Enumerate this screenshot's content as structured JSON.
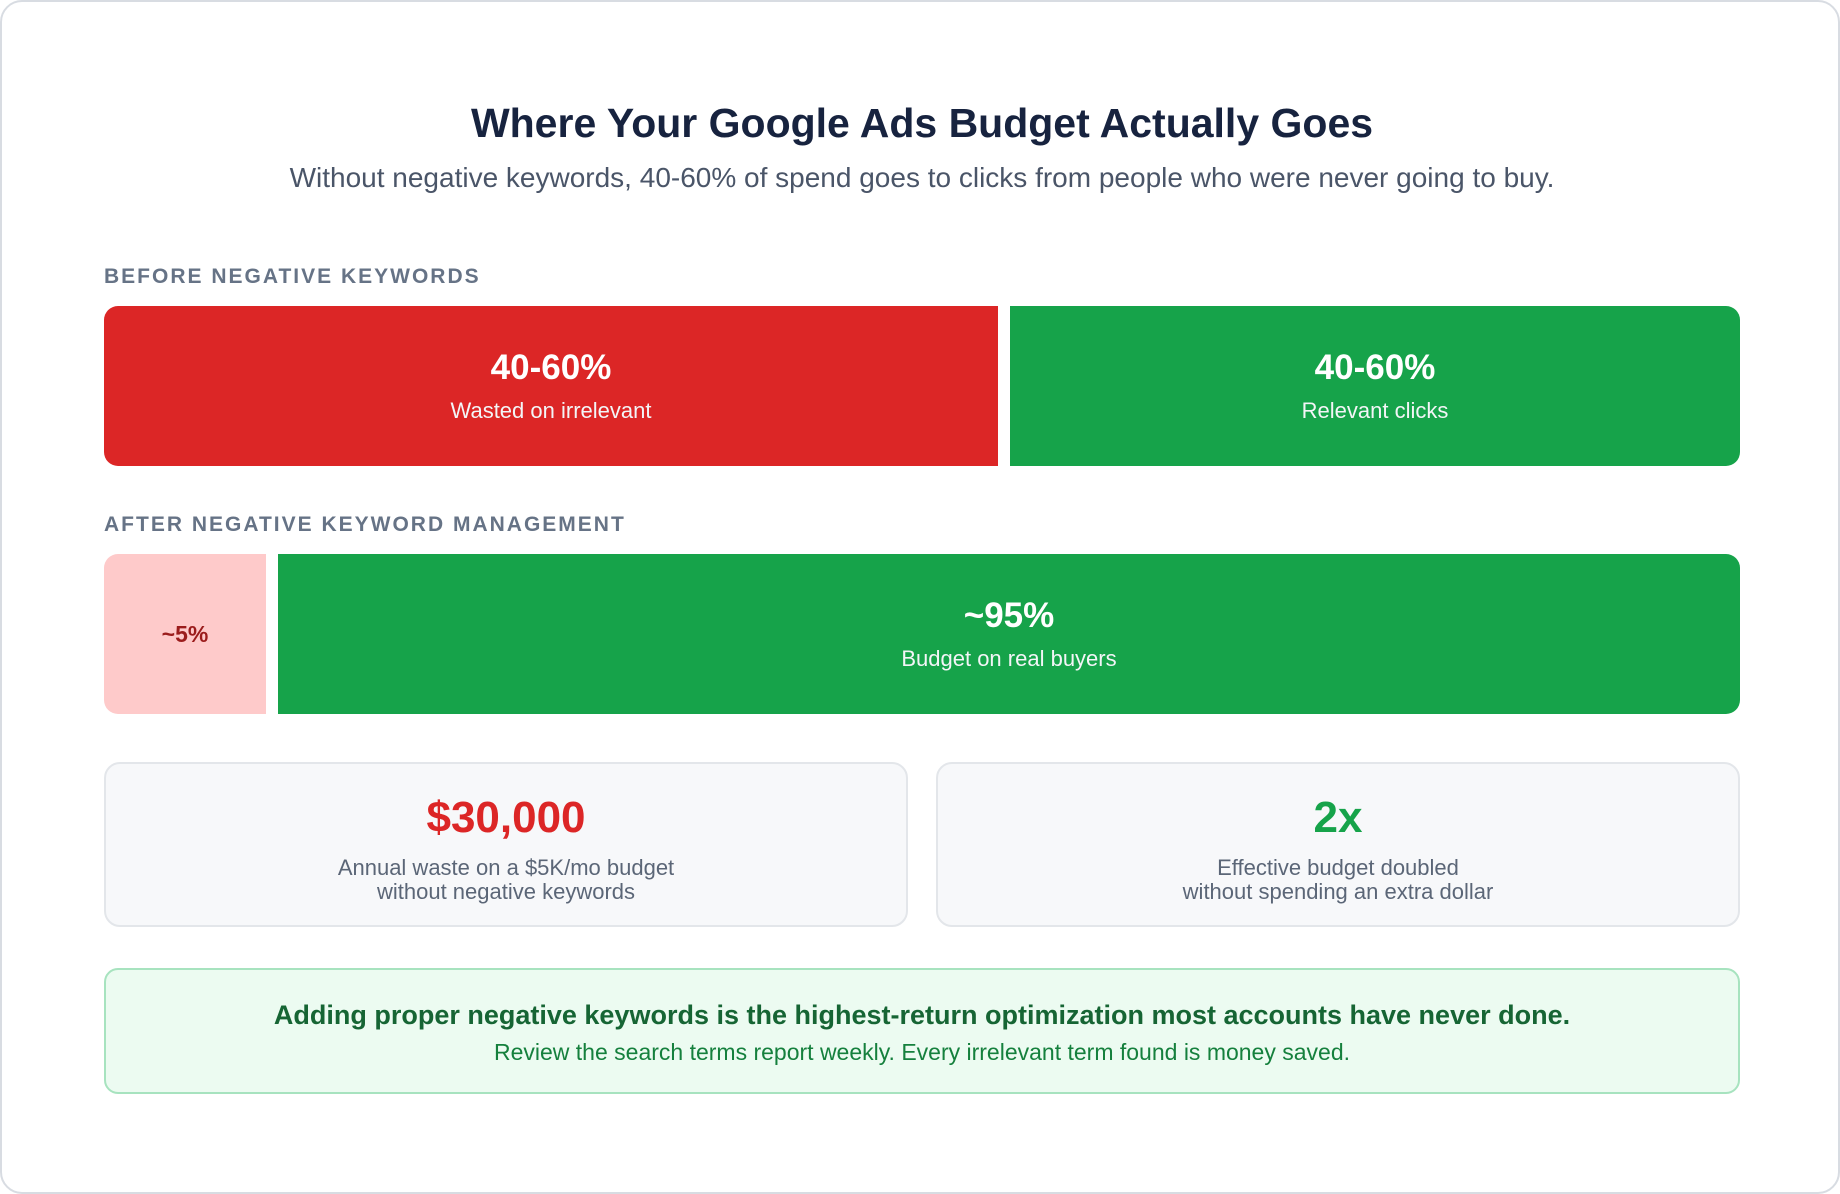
{
  "header": {
    "title": "Where Your Google Ads Budget Actually Goes",
    "subtitle": "Without negative keywords, 40-60% of spend goes to clicks from people who were never going to buy."
  },
  "before": {
    "label": "BEFORE NEGATIVE KEYWORDS",
    "segments": [
      {
        "value": "40-60%",
        "caption": "Wasted on irrelevant",
        "color": "#dc2626"
      },
      {
        "value": "40-60%",
        "caption": "Relevant clicks",
        "color": "#16a34a"
      }
    ]
  },
  "after": {
    "label": "AFTER NEGATIVE KEYWORD MANAGEMENT",
    "segments": [
      {
        "value": "~5%",
        "color": "#fecaca"
      },
      {
        "value": "~95%",
        "caption": "Budget on real buyers",
        "color": "#16a34a"
      }
    ]
  },
  "stats": [
    {
      "value": "$30,000",
      "line1": "Annual waste on a $5K/mo budget",
      "line2": "without negative keywords",
      "color": "#dc2626"
    },
    {
      "value": "2x",
      "line1": "Effective budget doubled",
      "line2": "without spending an extra dollar",
      "color": "#16a34a"
    }
  ],
  "callout": {
    "headline": "Adding proper negative keywords is the highest-return optimization most accounts have never done.",
    "body": "Review the search terms report weekly. Every irrelevant term found is money saved."
  }
}
